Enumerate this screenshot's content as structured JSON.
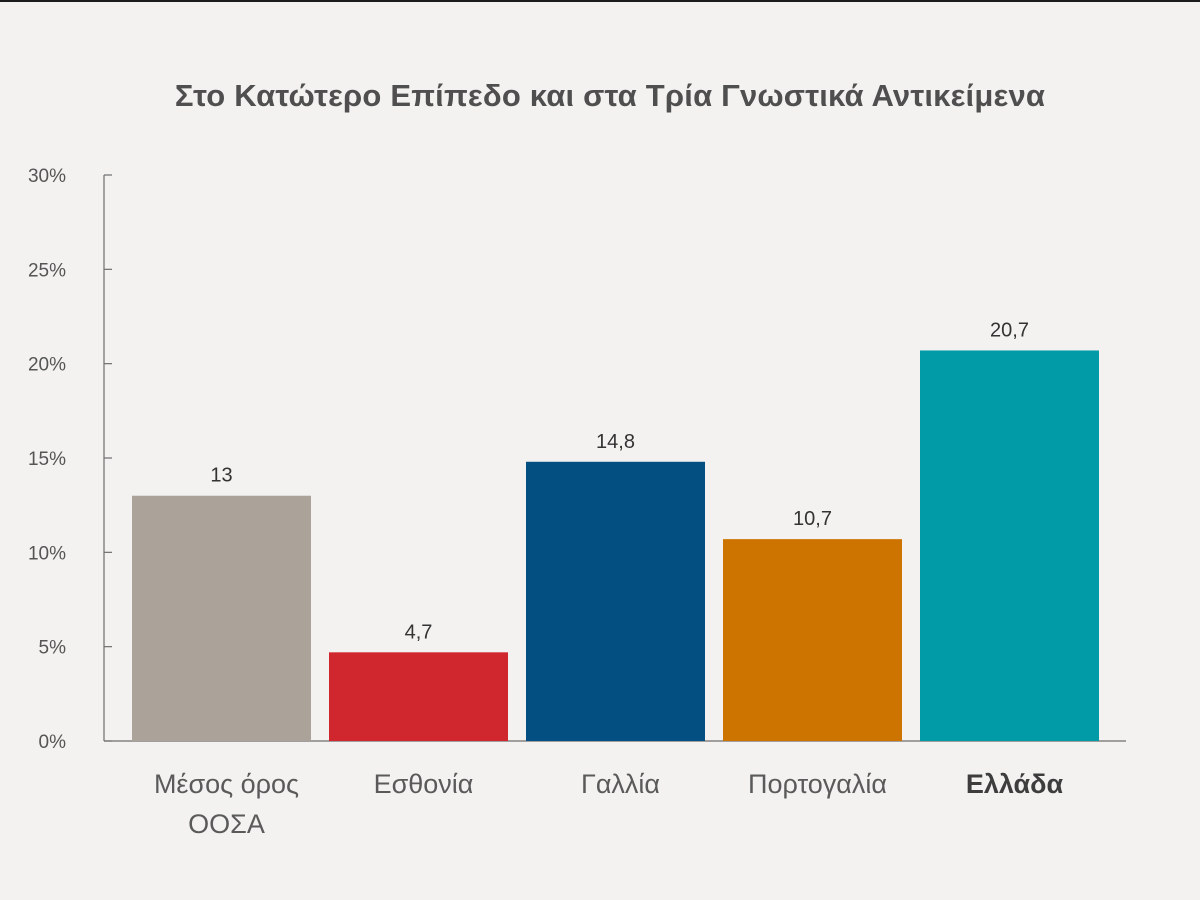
{
  "chart_data": {
    "type": "bar",
    "title": "Στο Κατώτερο Επίπεδο και στα Τρία Γνωστικά Αντικείμενα",
    "xlabel": "",
    "ylabel": "",
    "ylim": [
      0,
      30
    ],
    "yticks": [
      0,
      5,
      10,
      15,
      20,
      25,
      30
    ],
    "ytick_labels": [
      "0%",
      "5%",
      "10%",
      "15%",
      "20%",
      "25%",
      "30%"
    ],
    "grid": false,
    "legend": "none",
    "categories": [
      "Μέσος όρος ΟΟΣΑ",
      "Εσθονία",
      "Γαλλία",
      "Πορτογαλία",
      "Ελλάδα"
    ],
    "category_lines": [
      [
        "Μέσος όρος",
        "ΟΟΣΑ"
      ],
      [
        "Εσθονία"
      ],
      [
        "Γαλλία"
      ],
      [
        "Πορτογαλία"
      ],
      [
        "Ελλάδα"
      ]
    ],
    "values": [
      13,
      4.7,
      14.8,
      10.7,
      20.7
    ],
    "value_labels": [
      "13",
      "4,7",
      "14,8",
      "10,7",
      "20,7"
    ],
    "colors": [
      "#aba39a",
      "#d0262d",
      "#044f82",
      "#cd7400",
      "#019ba8"
    ],
    "emphasized": [
      false,
      false,
      false,
      false,
      true
    ]
  }
}
